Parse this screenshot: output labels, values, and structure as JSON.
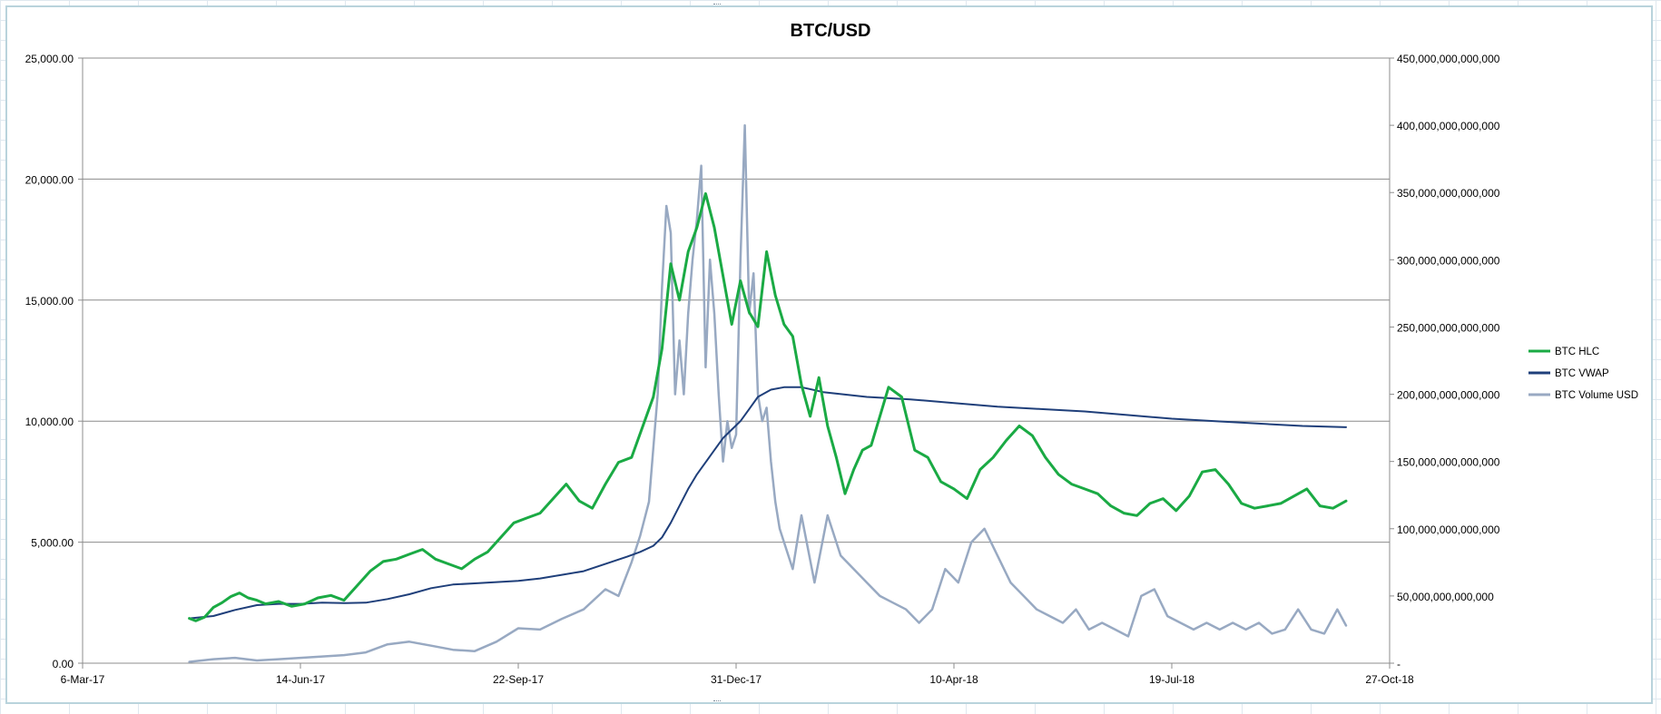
{
  "chart_data": {
    "type": "line",
    "title": "BTC/USD",
    "xlabel": "",
    "ylabel_left": "",
    "ylabel_right": "",
    "x_axis": {
      "ticks": [
        "6-Mar-17",
        "14-Jun-17",
        "22-Sep-17",
        "31-Dec-17",
        "10-Apr-18",
        "19-Jul-18",
        "27-Oct-18"
      ],
      "range_days": [
        0,
        600
      ]
    },
    "y_left": {
      "range": [
        0,
        25000
      ],
      "step": 5000,
      "tick_labels": [
        "0.00",
        "5,000.00",
        "10,000.00",
        "15,000.00",
        "20,000.00",
        "25,000.00"
      ]
    },
    "y_right": {
      "range": [
        0,
        450000000000000
      ],
      "step": 50000000000000,
      "tick_labels": [
        "-",
        "50,000,000,000,000",
        "100,000,000,000,000",
        "150,000,000,000,000",
        "200,000,000,000,000",
        "250,000,000,000,000",
        "300,000,000,000,000",
        "350,000,000,000,000",
        "400,000,000,000,000",
        "450,000,000,000,000"
      ]
    },
    "grid": true,
    "legend": {
      "position": "right",
      "entries": [
        "BTC HLC",
        "BTC VWAP",
        "BTC Volume USD"
      ]
    },
    "series": [
      {
        "name": "BTC HLC",
        "axis": "left",
        "color": "#1aaa44",
        "x": [
          49,
          52,
          56,
          60,
          64,
          68,
          72,
          76,
          80,
          84,
          90,
          96,
          102,
          108,
          114,
          120,
          126,
          132,
          138,
          144,
          150,
          156,
          162,
          168,
          174,
          180,
          186,
          192,
          198,
          204,
          210,
          216,
          222,
          228,
          234,
          240,
          246,
          252,
          258,
          262,
          266,
          270,
          274,
          278,
          282,
          286,
          290,
          294,
          298,
          302,
          306,
          310,
          314,
          318,
          322,
          326,
          330,
          334,
          338,
          342,
          346,
          350,
          354,
          358,
          362,
          366,
          370,
          376,
          382,
          388,
          394,
          400,
          406,
          412,
          418,
          424,
          430,
          436,
          442,
          448,
          454,
          460,
          466,
          472,
          478,
          484,
          490,
          496,
          502,
          508,
          514,
          520,
          526,
          532,
          538,
          544,
          550,
          556,
          562,
          568,
          574,
          580
        ],
        "y": [
          1850,
          1750,
          1900,
          2300,
          2500,
          2750,
          2900,
          2700,
          2600,
          2450,
          2550,
          2350,
          2450,
          2700,
          2800,
          2600,
          3200,
          3800,
          4200,
          4300,
          4500,
          4700,
          4300,
          4100,
          3900,
          4300,
          4600,
          5200,
          5800,
          6000,
          6200,
          6800,
          7400,
          6700,
          6400,
          7400,
          8300,
          8500,
          10000,
          11000,
          13000,
          16500,
          15000,
          17000,
          18000,
          19400,
          18000,
          16000,
          14000,
          15800,
          14500,
          13900,
          17000,
          15200,
          14000,
          13500,
          11500,
          10200,
          11800,
          9800,
          8500,
          7000,
          8000,
          8800,
          9000,
          10200,
          11400,
          11000,
          8800,
          8500,
          7500,
          7200,
          6800,
          8000,
          8500,
          9200,
          9800,
          9400,
          8500,
          7800,
          7400,
          7200,
          7000,
          6500,
          6200,
          6100,
          6600,
          6800,
          6300,
          6900,
          7900,
          8000,
          7400,
          6600,
          6400,
          6500,
          6600,
          6900,
          7200,
          6500,
          6400,
          6700
        ]
      },
      {
        "name": "BTC VWAP",
        "axis": "left",
        "color": "#1f3f7a",
        "x": [
          49,
          60,
          70,
          80,
          90,
          100,
          110,
          120,
          130,
          140,
          150,
          160,
          170,
          180,
          190,
          200,
          210,
          220,
          230,
          240,
          250,
          256,
          262,
          266,
          270,
          274,
          278,
          282,
          286,
          290,
          294,
          298,
          302,
          306,
          310,
          316,
          322,
          330,
          340,
          350,
          360,
          380,
          400,
          420,
          440,
          460,
          480,
          500,
          520,
          540,
          560,
          580
        ],
        "y": [
          1850,
          1950,
          2200,
          2400,
          2450,
          2450,
          2500,
          2480,
          2500,
          2650,
          2850,
          3100,
          3250,
          3300,
          3350,
          3400,
          3500,
          3650,
          3800,
          4100,
          4400,
          4600,
          4850,
          5200,
          5800,
          6500,
          7200,
          7800,
          8300,
          8800,
          9300,
          9650,
          10000,
          10500,
          11000,
          11300,
          11400,
          11400,
          11200,
          11100,
          11000,
          10900,
          10750,
          10600,
          10500,
          10400,
          10250,
          10100,
          10000,
          9900,
          9800,
          9750
        ]
      },
      {
        "name": "BTC Volume USD",
        "axis": "right",
        "color": "#98a9c2",
        "x": [
          49,
          60,
          70,
          80,
          90,
          100,
          110,
          120,
          130,
          140,
          150,
          160,
          170,
          180,
          190,
          200,
          210,
          220,
          230,
          240,
          246,
          252,
          256,
          260,
          264,
          266,
          268,
          270,
          272,
          274,
          276,
          278,
          280,
          282,
          284,
          286,
          288,
          290,
          292,
          294,
          296,
          298,
          300,
          302,
          304,
          306,
          308,
          310,
          312,
          314,
          316,
          318,
          320,
          322,
          326,
          330,
          336,
          342,
          348,
          354,
          360,
          366,
          372,
          378,
          384,
          390,
          396,
          402,
          408,
          414,
          420,
          426,
          432,
          438,
          444,
          450,
          456,
          462,
          468,
          474,
          480,
          486,
          492,
          498,
          504,
          510,
          516,
          522,
          528,
          534,
          540,
          546,
          552,
          558,
          564,
          570,
          576,
          580
        ],
        "y": [
          1000000000000,
          3000000000000,
          4000000000000,
          2000000000000,
          3000000000000,
          4000000000000,
          5000000000000,
          6000000000000,
          8000000000000,
          14000000000000,
          16000000000000,
          13000000000000,
          10000000000000,
          9000000000000,
          16000000000000,
          26000000000000,
          25000000000000,
          33000000000000,
          40000000000000,
          55000000000000,
          50000000000000,
          75000000000000,
          95000000000000,
          120000000000000,
          200000000000000,
          280000000000000,
          340000000000000,
          320000000000000,
          200000000000000,
          240000000000000,
          200000000000000,
          260000000000000,
          300000000000000,
          330000000000000,
          370000000000000,
          220000000000000,
          300000000000000,
          260000000000000,
          200000000000000,
          150000000000000,
          180000000000000,
          160000000000000,
          170000000000000,
          300000000000000,
          400000000000000,
          260000000000000,
          290000000000000,
          200000000000000,
          180000000000000,
          190000000000000,
          150000000000000,
          120000000000000,
          100000000000000,
          90000000000000,
          70000000000000,
          110000000000000,
          60000000000000,
          110000000000000,
          80000000000000,
          70000000000000,
          60000000000000,
          50000000000000,
          45000000000000,
          40000000000000,
          30000000000000,
          40000000000000,
          70000000000000,
          60000000000000,
          90000000000000,
          100000000000000,
          80000000000000,
          60000000000000,
          50000000000000,
          40000000000000,
          35000000000000,
          30000000000000,
          40000000000000,
          25000000000000,
          30000000000000,
          25000000000000,
          20000000000000,
          50000000000000,
          55000000000000,
          35000000000000,
          30000000000000,
          25000000000000,
          30000000000000,
          25000000000000,
          30000000000000,
          25000000000000,
          30000000000000,
          22000000000000,
          25000000000000,
          40000000000000,
          25000000000000,
          22000000000000,
          40000000000000,
          28000000000000
        ]
      }
    ]
  }
}
